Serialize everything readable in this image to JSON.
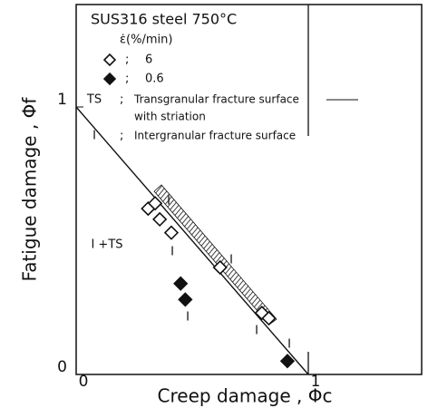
{
  "chart_data": {
    "type": "scatter",
    "title": "SUS316 steel   750°C",
    "legend_title": "ε̇(%/min)",
    "x_label": "Creep damage , Φc",
    "y_label": "Fatigue damage , Φf",
    "xlim": [
      0,
      1.5
    ],
    "ylim": [
      0,
      1.4
    ],
    "xticks": [
      0,
      1
    ],
    "yticks": [
      0,
      1
    ],
    "series": [
      {
        "name": "6",
        "marker": "open-diamond",
        "color": "#111",
        "x": [
          0.31,
          0.34,
          0.36,
          0.41,
          0.62,
          0.8,
          0.83
        ],
        "values": [
          0.62,
          0.64,
          0.58,
          0.53,
          0.4,
          0.23,
          0.21
        ]
      },
      {
        "name": "0.6",
        "marker": "filled-diamond",
        "color": "#111",
        "x": [
          0.45,
          0.47,
          0.91
        ],
        "values": [
          0.34,
          0.28,
          0.05
        ]
      }
    ],
    "legend_notes": [
      {
        "symbol": "TS",
        "text": "Transgranular fracture surface",
        "text2": "with striation"
      },
      {
        "symbol": "I",
        "text": "Intergranular fracture surface"
      }
    ],
    "annotations": [
      "I",
      "I +TS",
      "I",
      "I",
      "I",
      "I",
      "I"
    ]
  }
}
